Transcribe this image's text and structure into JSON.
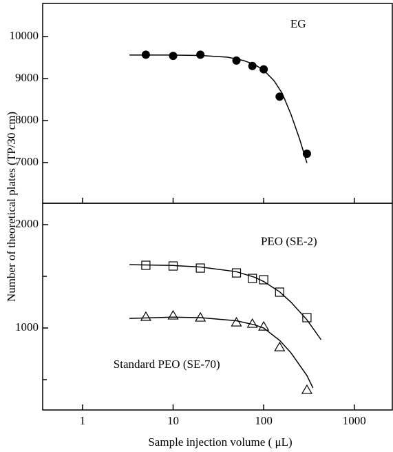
{
  "chart_data": [
    {
      "type": "scatter",
      "log_x": true,
      "xlim": [
        0.363,
        2630
      ],
      "xticks": [
        1,
        10,
        100,
        1000
      ],
      "ylim": [
        6030,
        10790
      ],
      "yticks": [
        7000,
        8000,
        9000,
        10000
      ],
      "ylabel": "Number of theoretical plates (TP/30 cm)",
      "annotations": [
        {
          "text": "EG",
          "x": 240,
          "y": 10280
        }
      ],
      "series": [
        {
          "marker": "filled-circle",
          "color": "#000000",
          "x": [
            5,
            10,
            20,
            50,
            75,
            100,
            150,
            300
          ],
          "values": [
            9570,
            9540,
            9570,
            9430,
            9300,
            9220,
            8570,
            7210
          ]
        },
        {
          "marker": "none",
          "color": "#000000",
          "x": [
            3.3,
            10,
            20,
            40,
            60,
            80,
            100,
            130,
            160,
            200,
            250,
            300
          ],
          "values": [
            9560,
            9560,
            9550,
            9510,
            9430,
            9330,
            9200,
            8950,
            8650,
            8150,
            7550,
            6990
          ]
        }
      ]
    },
    {
      "type": "scatter",
      "log_x": true,
      "xlim": [
        0.363,
        2630
      ],
      "xticks": [
        1,
        10,
        100,
        1000
      ],
      "ylim": [
        207,
        2207
      ],
      "yticks": [
        1000,
        2000
      ],
      "yminorticks": [
        500,
        1500
      ],
      "xlabel": "Sample injection volume ( μL)",
      "annotations": [
        {
          "text": "PEO (SE-2)",
          "x": 190,
          "y": 1830
        },
        {
          "text": "Standard PEO (SE-70)",
          "x": 8.5,
          "y": 640
        }
      ],
      "series": [
        {
          "marker": "open-square",
          "color": "#000000",
          "x": [
            5,
            10,
            20,
            50,
            75,
            100,
            150,
            300
          ],
          "values": [
            1607,
            1600,
            1580,
            1533,
            1480,
            1467,
            1347,
            1100
          ]
        },
        {
          "marker": "none",
          "color": "#000000",
          "x": [
            3.3,
            10,
            20,
            50,
            80,
            100,
            150,
            200,
            300,
            430
          ],
          "values": [
            1613,
            1605,
            1590,
            1545,
            1490,
            1450,
            1350,
            1250,
            1080,
            887
          ]
        },
        {
          "marker": "open-triangle",
          "color": "#000000",
          "x": [
            5,
            10,
            20,
            50,
            75,
            100,
            150,
            300
          ],
          "values": [
            1107,
            1120,
            1100,
            1053,
            1040,
            1013,
            813,
            400
          ]
        },
        {
          "marker": "none",
          "color": "#000000",
          "x": [
            3.3,
            10,
            20,
            50,
            80,
            100,
            150,
            200,
            300,
            350
          ],
          "values": [
            1093,
            1105,
            1100,
            1070,
            1030,
            1000,
            880,
            760,
            540,
            420
          ]
        }
      ]
    }
  ]
}
